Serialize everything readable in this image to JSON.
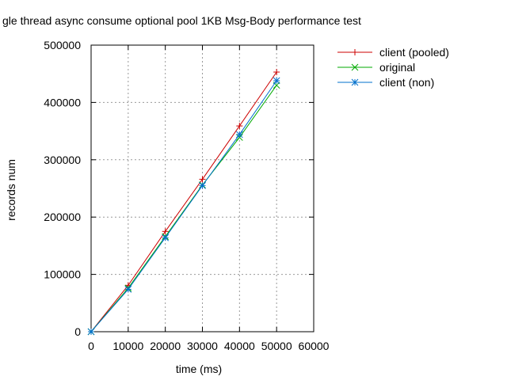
{
  "chart_data": {
    "type": "line",
    "title": "gle thread async consume optional pool 1KB Msg-Body performance test",
    "xlabel": "time (ms)",
    "ylabel": "records num",
    "xlim": [
      0,
      60000
    ],
    "ylim": [
      0,
      500000
    ],
    "xticks": [
      0,
      10000,
      20000,
      30000,
      40000,
      50000,
      60000
    ],
    "yticks": [
      0,
      100000,
      200000,
      300000,
      400000,
      500000
    ],
    "grid": true,
    "legend_position": "top-right, outside plot",
    "x": [
      0,
      10000,
      20000,
      30000,
      40000,
      50000
    ],
    "series": [
      {
        "name": "client (pooled)",
        "color": "#cc0000",
        "marker": "plus",
        "values": [
          0,
          81000,
          175000,
          266000,
          359000,
          453000
        ]
      },
      {
        "name": "original",
        "color": "#00aa00",
        "marker": "cross",
        "values": [
          0,
          76000,
          166000,
          256000,
          339000,
          430000
        ]
      },
      {
        "name": "client (non)",
        "color": "#0070cc",
        "marker": "star",
        "values": [
          0,
          74000,
          164000,
          255000,
          344000,
          438000
        ]
      }
    ]
  }
}
